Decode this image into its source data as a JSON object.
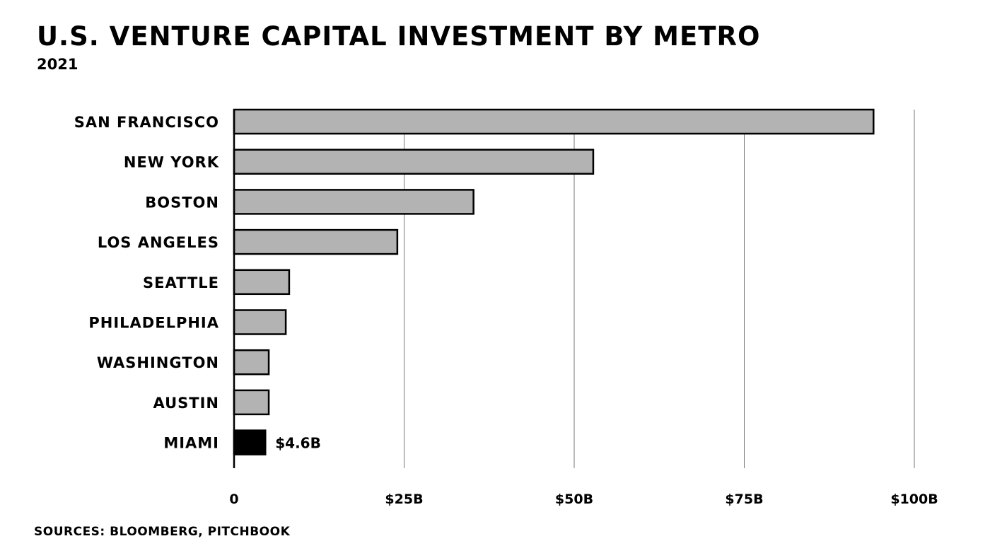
{
  "header": {
    "title": "U.S. Venture Capital Investment by Metro",
    "subtitle": "2021"
  },
  "footer": {
    "sources": "Sources: Bloomberg, Pitchbook"
  },
  "colors": {
    "bar_fill": "#b3b3b3",
    "highlight_fill": "#000000",
    "stroke": "#000000",
    "gridline": "#777777"
  },
  "chart_data": {
    "type": "bar",
    "orientation": "horizontal",
    "title": "U.S. Venture Capital Investment by Metro",
    "subtitle": "2021",
    "categories": [
      "San Francisco",
      "New York",
      "Boston",
      "Los Angeles",
      "Seattle",
      "Philadelphia",
      "Washington",
      "Austin",
      "Miami"
    ],
    "values": [
      94,
      52.8,
      35.2,
      24,
      8.1,
      7.6,
      5.1,
      5.1,
      4.6
    ],
    "unit": "$B",
    "xlim": [
      0,
      100
    ],
    "xticks": [
      0,
      25,
      50,
      75,
      100
    ],
    "xtick_labels": [
      "0",
      "$25B",
      "$50B",
      "$75B",
      "$100B"
    ],
    "grid": "vertical",
    "highlight": {
      "category": "Miami",
      "label": "$4.6B"
    }
  }
}
